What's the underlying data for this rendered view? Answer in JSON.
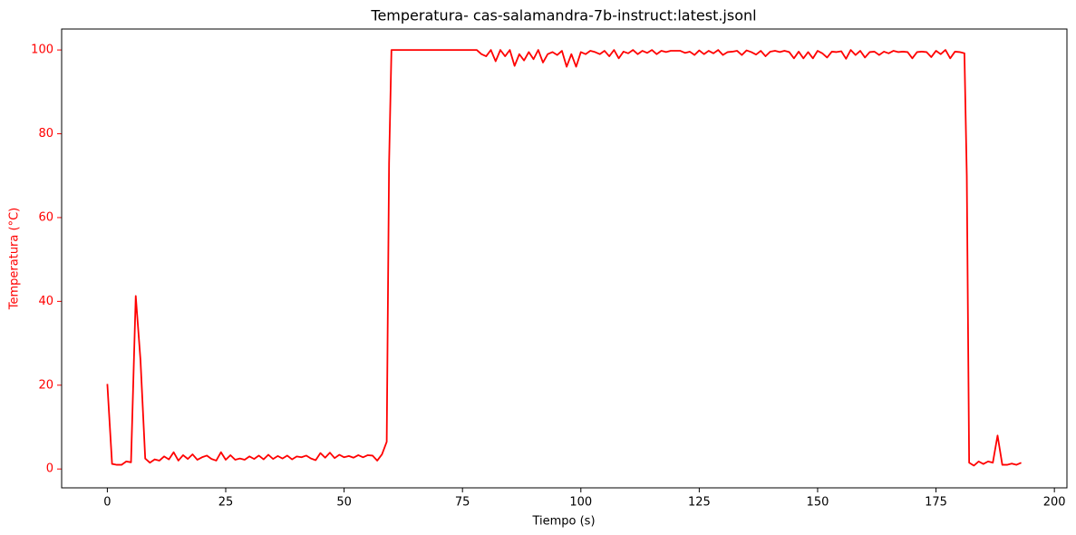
{
  "chart_data": {
    "type": "line",
    "title": "Temperatura- cas-salamandra-7b-instruct:latest.jsonl",
    "xlabel": "Tiempo (s)",
    "ylabel": "Temperatura (°C)",
    "color": "#ff0000",
    "xlim": [
      -9.65,
      202.65
    ],
    "ylim": [
      -4.5,
      105
    ],
    "xticks": [
      0,
      25,
      50,
      75,
      100,
      125,
      150,
      175,
      200
    ],
    "yticks": [
      0,
      20,
      40,
      60,
      80,
      100
    ],
    "grid": false,
    "x": [
      0,
      1,
      2,
      3,
      4,
      5,
      6,
      7,
      8,
      9,
      10,
      11,
      12,
      13,
      14,
      15,
      16,
      17,
      18,
      19,
      20,
      21,
      22,
      23,
      24,
      25,
      26,
      27,
      28,
      29,
      30,
      31,
      32,
      33,
      34,
      35,
      36,
      37,
      38,
      39,
      40,
      41,
      42,
      43,
      44,
      45,
      46,
      47,
      48,
      49,
      50,
      51,
      52,
      53,
      54,
      55,
      56,
      57,
      58,
      59,
      59.5,
      60,
      61,
      62,
      63,
      64,
      65,
      66,
      67,
      68,
      69,
      70,
      71,
      72,
      73,
      74,
      75,
      76,
      77,
      78,
      79,
      80,
      81,
      82,
      83,
      84,
      85,
      86,
      87,
      88,
      89,
      90,
      91,
      92,
      93,
      94,
      95,
      96,
      97,
      98,
      99,
      100,
      101,
      102,
      103,
      104,
      105,
      106,
      107,
      108,
      109,
      110,
      111,
      112,
      113,
      114,
      115,
      116,
      117,
      118,
      119,
      120,
      121,
      122,
      123,
      124,
      125,
      126,
      127,
      128,
      129,
      130,
      131,
      132,
      133,
      134,
      135,
      136,
      137,
      138,
      139,
      140,
      141,
      142,
      143,
      144,
      145,
      146,
      147,
      148,
      149,
      150,
      151,
      152,
      153,
      154,
      155,
      156,
      157,
      158,
      159,
      160,
      161,
      162,
      163,
      164,
      165,
      166,
      167,
      168,
      169,
      170,
      171,
      172,
      173,
      174,
      175,
      176,
      177,
      178,
      179,
      180,
      181,
      181.5,
      182,
      183,
      184,
      185,
      186,
      187,
      188,
      189,
      190,
      191,
      192,
      193
    ],
    "values": [
      20.3,
      1.2,
      1.0,
      1.0,
      1.8,
      1.6,
      41.3,
      26.0,
      2.5,
      1.5,
      2.3,
      2.0,
      3.0,
      2.3,
      4.0,
      2.0,
      3.3,
      2.4,
      3.5,
      2.2,
      2.8,
      3.2,
      2.4,
      2.0,
      4.0,
      2.2,
      3.3,
      2.2,
      2.5,
      2.2,
      3.0,
      2.4,
      3.2,
      2.3,
      3.4,
      2.4,
      3.1,
      2.5,
      3.2,
      2.3,
      3.0,
      2.8,
      3.2,
      2.5,
      2.1,
      3.8,
      2.7,
      3.9,
      2.6,
      3.4,
      2.8,
      3.1,
      2.7,
      3.3,
      2.8,
      3.3,
      3.2,
      2.0,
      3.5,
      6.5,
      73,
      100,
      100,
      100,
      100,
      100,
      100,
      100,
      100,
      100,
      100,
      100,
      100,
      100,
      100,
      100,
      100,
      100,
      100,
      100,
      99,
      98.5,
      100,
      97.3,
      100,
      98.5,
      100,
      96.2,
      99,
      97.5,
      99.5,
      97.8,
      100,
      97,
      99,
      99.5,
      98.8,
      99.8,
      96,
      99,
      96,
      99.5,
      99,
      99.8,
      99.5,
      99,
      99.8,
      98.5,
      100,
      98,
      99.6,
      99.2,
      100,
      99,
      99.8,
      99.3,
      100,
      99,
      99.8,
      99.5,
      99.8,
      99.8,
      99.8,
      99.3,
      99.6,
      98.8,
      99.9,
      99,
      99.8,
      99.2,
      100,
      98.8,
      99.5,
      99.6,
      99.8,
      98.8,
      99.9,
      99.5,
      98.9,
      99.8,
      98.5,
      99.6,
      99.8,
      99.5,
      99.8,
      99.5,
      98.0,
      99.6,
      98.0,
      99.5,
      98,
      99.8,
      99.2,
      98.2,
      99.6,
      99.5,
      99.7,
      97.9,
      100,
      98.8,
      99.8,
      98.2,
      99.5,
      99.6,
      98.8,
      99.6,
      99.2,
      99.8,
      99.5,
      99.6,
      99.5,
      98.0,
      99.5,
      99.6,
      99.5,
      98.3,
      99.8,
      99,
      100,
      98,
      99.6,
      99.5,
      99.2,
      70,
      1.5,
      0.8,
      1.8,
      1.2,
      1.8,
      1.5,
      8.0,
      1.0,
      1.0,
      1.3,
      1.0,
      1.5
    ]
  }
}
